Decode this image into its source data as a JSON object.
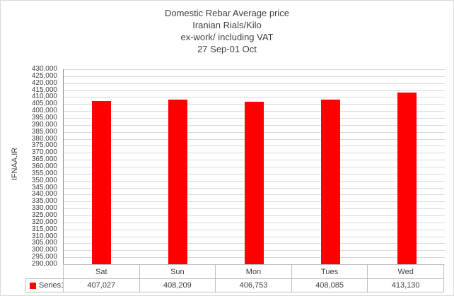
{
  "title": {
    "line1": "Domestic Rebar Average price",
    "line2": "Iranian Rials/Kilo",
    "line3": "ex-work/ including VAT",
    "line4": "27 Sep-01 Oct"
  },
  "y_axis": {
    "label": "IFNAA.IR"
  },
  "legend": {
    "series_label": "Series1",
    "swatch_color": "#ff0000"
  },
  "colors": {
    "bar": "#ff0000",
    "gridline": "#d9d9d9",
    "axis_line": "#8c8c8c",
    "table_border": "#bfbfbf",
    "text": "#404040",
    "chart_border": "#d9d9d9"
  },
  "chart_data": {
    "type": "bar",
    "title": "Domestic Rebar Average price Iranian Rials/Kilo ex-work/ including VAT 27 Sep-01 Oct",
    "categories": [
      "Sat",
      "Sun",
      "Mon",
      "Tues",
      "Wed"
    ],
    "series": [
      {
        "name": "Series1",
        "values": [
          407027,
          408209,
          406753,
          408085,
          413130
        ],
        "color": "#ff0000"
      }
    ],
    "value_labels": [
      "407,027",
      "408,209",
      "406,753",
      "408,085",
      "413,130"
    ],
    "xlabel": "",
    "ylabel": "IFNAA.IR",
    "ylim": [
      290000,
      430000
    ],
    "ytick_step": 5000,
    "grid": "horizontal",
    "legend_position": "bottom-left-data-table",
    "data_table": true
  }
}
